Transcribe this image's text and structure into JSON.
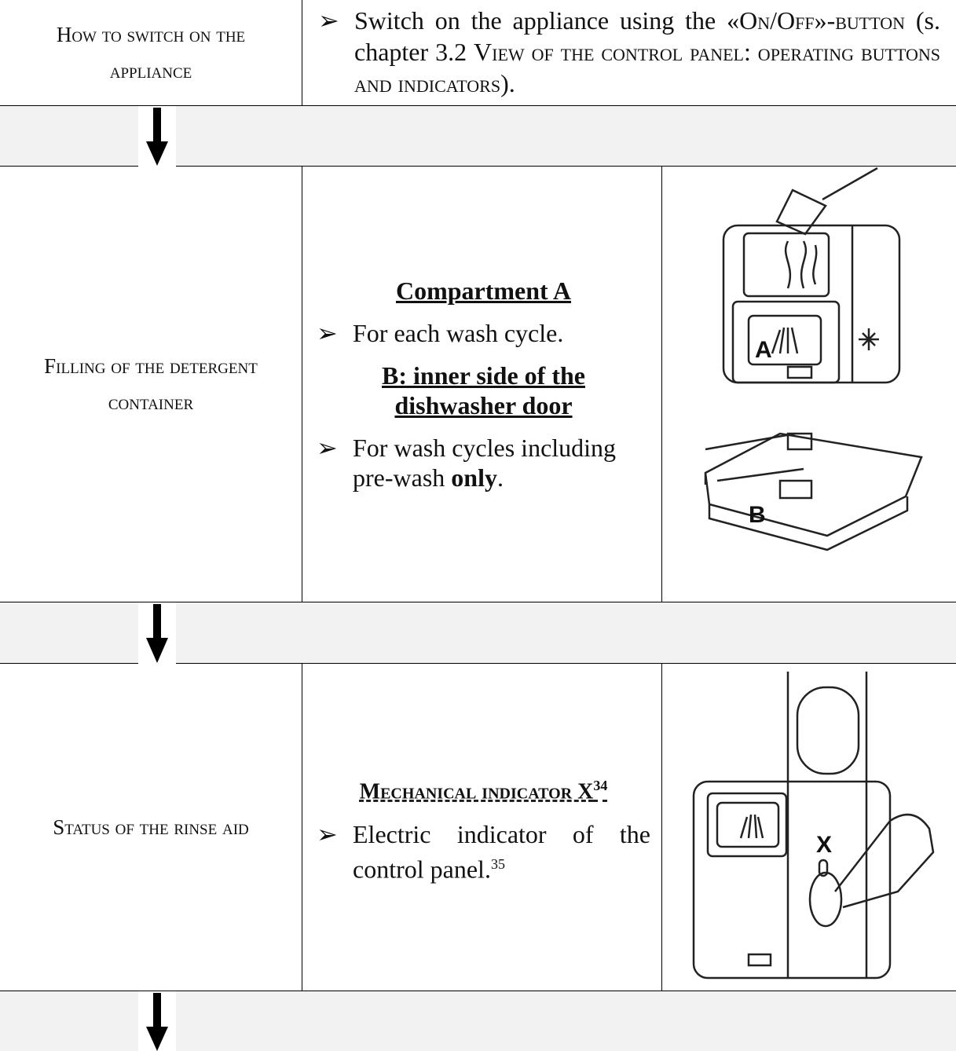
{
  "steps": [
    {
      "label": "How to switch on the appliance",
      "instruction": [
        "Switch on the appliance using the «",
        "On/Off",
        "»-",
        "button",
        " (s. chapter 3.2 ",
        "View of the control panel: operating buttons and indicators",
        ")."
      ]
    },
    {
      "label": "Filling of the detergent container",
      "heading_1": "Compartment A",
      "bullet_1": "For each wash cycle.",
      "heading_2": "B: inner side of the dishwasher door",
      "bullet_2": [
        "For wash cycles including pre-wash ",
        "only",
        "."
      ],
      "image_labels": [
        "A",
        "B"
      ]
    },
    {
      "label": "Status of the rinse aid",
      "heading": [
        "Mechanical indicator X",
        "34"
      ],
      "bullet": [
        "Electric indicator of the control panel.",
        "35"
      ],
      "image_labels": [
        "X"
      ]
    }
  ]
}
